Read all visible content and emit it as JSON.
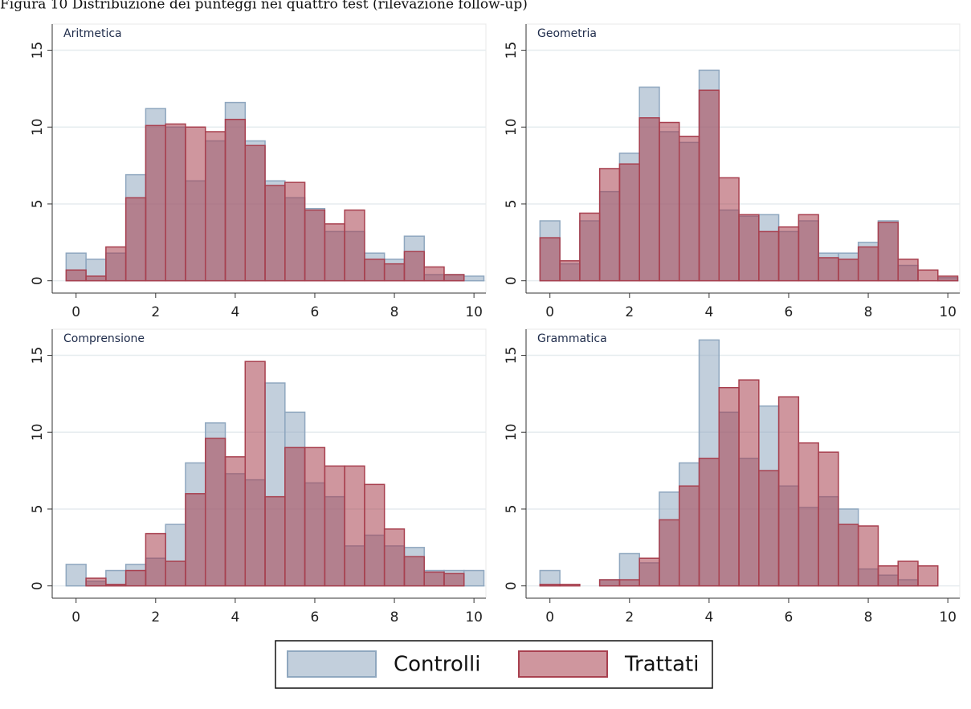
{
  "caption": "Figura 10 Distribuzione dei punteggi nei quattro test (rilevazione follow-up)",
  "chart_data": [
    {
      "type": "histogram",
      "title": "Aritmetica",
      "bins": [
        -0.25,
        0.25,
        0.75,
        1.25,
        1.75,
        2.25,
        2.75,
        3.25,
        3.75,
        4.25,
        4.75,
        5.25,
        5.75,
        6.25,
        6.75,
        7.25,
        7.75,
        8.25,
        8.75,
        9.25,
        9.75,
        10.25
      ],
      "series": [
        {
          "name": "Controlli",
          "color": "#8fa7bf",
          "values": [
            1.8,
            1.4,
            1.8,
            6.9,
            11.2,
            10.0,
            6.5,
            9.1,
            11.6,
            9.1,
            6.5,
            5.4,
            4.7,
            3.2,
            3.2,
            1.8,
            1.4,
            2.9,
            0.4,
            0.4,
            0.3
          ]
        },
        {
          "name": "Trattati",
          "color": "#a8404f",
          "values": [
            0.7,
            0.3,
            2.2,
            5.4,
            10.1,
            10.2,
            10.0,
            9.7,
            10.5,
            8.8,
            6.2,
            6.4,
            4.6,
            3.7,
            4.6,
            1.4,
            1.1,
            1.9,
            0.9,
            0.4,
            0
          ]
        }
      ],
      "xlim": [
        -0.6,
        10.3
      ],
      "ylim": [
        -0.8,
        16.7
      ],
      "xticks": [
        0,
        2,
        4,
        6,
        8,
        10
      ],
      "yticks": [
        0,
        5,
        10,
        15
      ],
      "grid": true
    },
    {
      "type": "histogram",
      "title": "Geometria",
      "bins": [
        -0.25,
        0.25,
        0.75,
        1.25,
        1.75,
        2.25,
        2.75,
        3.25,
        3.75,
        4.25,
        4.75,
        5.25,
        5.75,
        6.25,
        6.75,
        7.25,
        7.75,
        8.25,
        8.75,
        9.25,
        9.75,
        10.25
      ],
      "series": [
        {
          "name": "Controlli",
          "color": "#8fa7bf",
          "values": [
            3.9,
            1.1,
            3.9,
            5.8,
            8.3,
            12.6,
            9.7,
            9.0,
            13.7,
            4.6,
            4.2,
            4.3,
            3.2,
            3.9,
            1.8,
            1.8,
            2.5,
            3.9,
            1.0,
            0,
            0.2
          ]
        },
        {
          "name": "Trattati",
          "color": "#a8404f",
          "values": [
            2.8,
            1.3,
            4.4,
            7.3,
            7.6,
            10.6,
            10.3,
            9.4,
            12.4,
            6.7,
            4.3,
            3.2,
            3.5,
            4.3,
            1.5,
            1.4,
            2.2,
            3.8,
            1.4,
            0.7,
            0.3
          ]
        }
      ],
      "xlim": [
        -0.6,
        10.3
      ],
      "ylim": [
        -0.8,
        16.7
      ],
      "xticks": [
        0,
        2,
        4,
        6,
        8,
        10
      ],
      "yticks": [
        0,
        5,
        10,
        15
      ],
      "grid": true
    },
    {
      "type": "histogram",
      "title": "Comprensione",
      "bins": [
        -0.25,
        0.25,
        0.75,
        1.25,
        1.75,
        2.25,
        2.75,
        3.25,
        3.75,
        4.25,
        4.75,
        5.25,
        5.75,
        6.25,
        6.75,
        7.25,
        7.75,
        8.25,
        8.75,
        9.25,
        9.75,
        10.25
      ],
      "series": [
        {
          "name": "Controlli",
          "color": "#8fa7bf",
          "values": [
            1.4,
            0.3,
            1.0,
            1.4,
            1.8,
            4.0,
            8.0,
            10.6,
            7.3,
            6.9,
            13.2,
            11.3,
            6.7,
            5.8,
            2.6,
            3.3,
            2.6,
            2.5,
            1.0,
            1.0,
            1.0
          ]
        },
        {
          "name": "Trattati",
          "color": "#a8404f",
          "values": [
            0,
            0.5,
            0.1,
            1.0,
            3.4,
            1.6,
            6.0,
            9.6,
            8.4,
            14.6,
            5.8,
            9.0,
            9.0,
            7.8,
            7.8,
            6.6,
            3.7,
            1.9,
            0.9,
            0.8,
            0
          ]
        }
      ],
      "xlim": [
        -0.6,
        10.3
      ],
      "ylim": [
        -0.8,
        16.7
      ],
      "xticks": [
        0,
        2,
        4,
        6,
        8,
        10
      ],
      "yticks": [
        0,
        5,
        10,
        15
      ],
      "grid": true
    },
    {
      "type": "histogram",
      "title": "Grammatica",
      "bins": [
        -0.25,
        0.25,
        0.75,
        1.25,
        1.75,
        2.25,
        2.75,
        3.25,
        3.75,
        4.25,
        4.75,
        5.25,
        5.75,
        6.25,
        6.75,
        7.25,
        7.75,
        8.25,
        8.75,
        9.25,
        9.75,
        10.25
      ],
      "series": [
        {
          "name": "Controlli",
          "color": "#8fa7bf",
          "values": [
            1.0,
            0,
            0,
            0.4,
            2.1,
            1.5,
            6.1,
            8.0,
            16.0,
            11.3,
            8.3,
            11.7,
            6.5,
            5.1,
            5.8,
            5.0,
            1.1,
            0.7,
            0.4,
            0,
            0
          ]
        },
        {
          "name": "Trattati",
          "color": "#a8404f",
          "values": [
            0.1,
            0.1,
            0,
            0.4,
            0.4,
            1.8,
            4.3,
            6.5,
            8.3,
            12.9,
            13.4,
            7.5,
            12.3,
            9.3,
            8.7,
            4.0,
            3.9,
            1.3,
            1.6,
            1.3,
            0
          ]
        }
      ],
      "xlim": [
        -0.6,
        10.3
      ],
      "ylim": [
        -0.8,
        16.7
      ],
      "xticks": [
        0,
        2,
        4,
        6,
        8,
        10
      ],
      "yticks": [
        0,
        5,
        10,
        15
      ],
      "grid": true
    }
  ]
}
